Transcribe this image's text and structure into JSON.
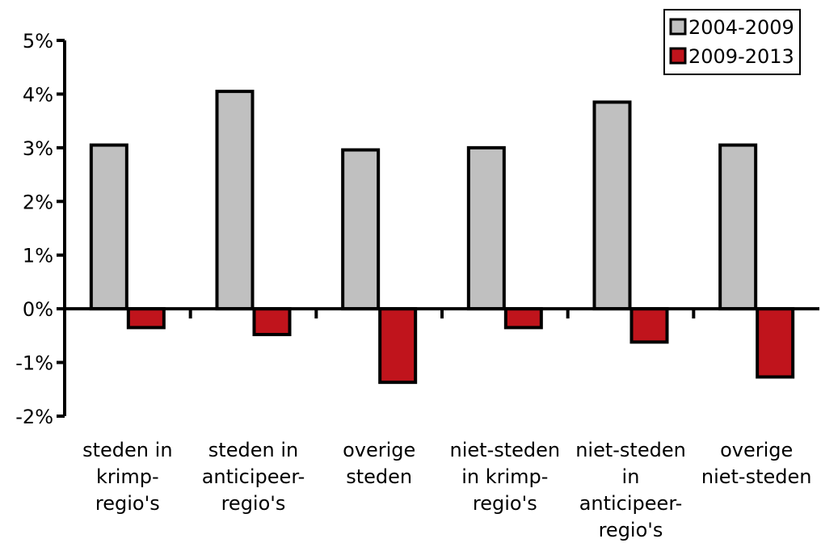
{
  "chart_data": {
    "type": "bar",
    "categories": [
      [
        "steden in",
        "krimp-",
        "regio's"
      ],
      [
        "steden in",
        "anticipeer-",
        "regio's"
      ],
      [
        "overige",
        "steden"
      ],
      [
        "niet-steden",
        "in krimp-",
        "regio's"
      ],
      [
        "niet-steden",
        "in",
        "anticipeer-",
        "regio's"
      ],
      [
        "overige",
        "niet-steden"
      ]
    ],
    "series": [
      {
        "name": "2004-2009",
        "color": "#c0c0c0",
        "values": [
          0.0305,
          0.0405,
          0.0296,
          0.03,
          0.0385,
          0.0305
        ]
      },
      {
        "name": "2009-2013",
        "color": "#c0141c",
        "values": [
          -0.0035,
          -0.0048,
          -0.0137,
          -0.0035,
          -0.0062,
          -0.0127
        ]
      }
    ],
    "ylim": [
      -0.02,
      0.05
    ],
    "yticks": [
      -0.02,
      -0.01,
      0,
      0.01,
      0.02,
      0.03,
      0.04,
      0.05
    ],
    "ytick_labels": [
      "-2%",
      "-1%",
      "0%",
      "1%",
      "2%",
      "3%",
      "4%",
      "5%"
    ],
    "title": "",
    "xlabel": "",
    "ylabel": "",
    "legend": "top-right",
    "grid": false
  }
}
